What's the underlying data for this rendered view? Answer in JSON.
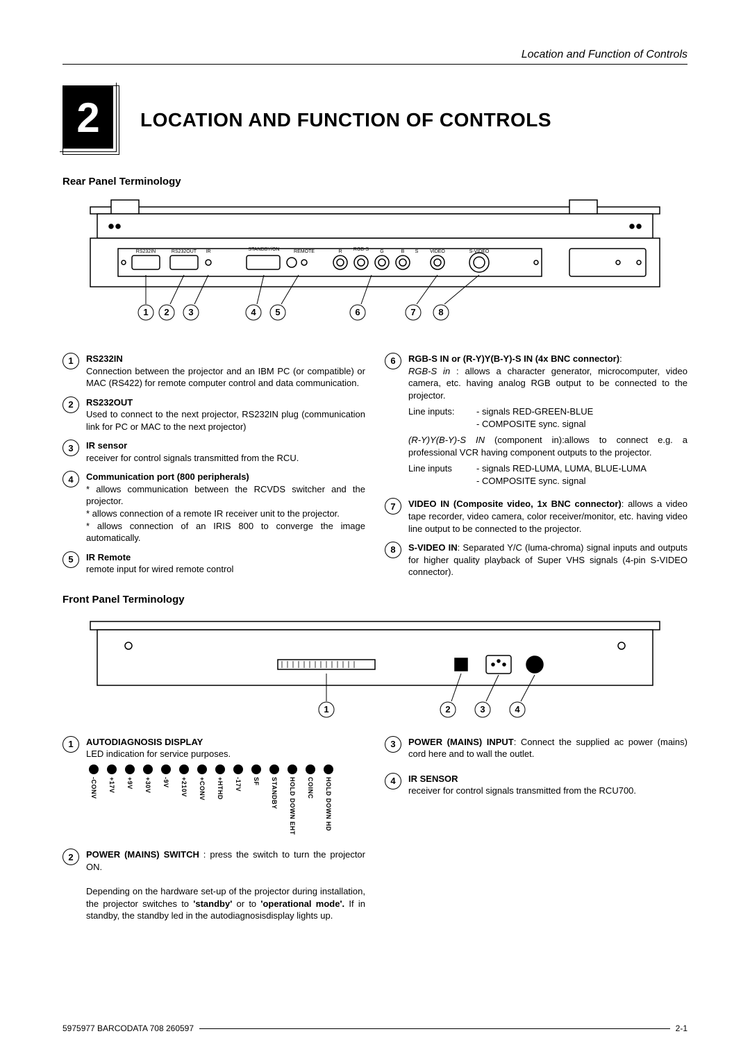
{
  "header": {
    "running_title": "Location and Function of Controls"
  },
  "chapter": {
    "number": "2",
    "title": "LOCATION AND FUNCTION OF CONTROLS"
  },
  "rear": {
    "heading": "Rear Panel Terminology",
    "diagram": {
      "type": "infographic",
      "colors": {
        "stroke": "#000000",
        "fill": "#ffffff"
      },
      "port_labels": [
        "RS232IN",
        "RS232OUT",
        "IR",
        "STANDBY/ON",
        "REMOTE",
        "R",
        "RGB-S",
        "G",
        "B",
        "S",
        "VIDEO",
        "S-VIDEO"
      ],
      "callouts": [
        "1",
        "2",
        "3",
        "4",
        "5",
        "6",
        "7",
        "8"
      ]
    },
    "items_left": [
      {
        "n": "1",
        "title": "RS232IN",
        "text": "Connection between the projector and an IBM PC (or compatible) or MAC (RS422) for remote computer control and data communication."
      },
      {
        "n": "2",
        "title": "RS232OUT",
        "text": "Used to connect to the next projector, RS232IN plug (communication link for PC or MAC to the next projector)"
      },
      {
        "n": "3",
        "title": "IR sensor",
        "text": "receiver for control signals transmitted from the RCU."
      },
      {
        "n": "4",
        "title": "Communication port (800 peripherals)",
        "text": "* allows communication between the RCVDS switcher and the projector.\n* allows connection of a remote IR receiver unit to the projector.\n* allows connection of an IRIS 800 to converge the image automatically."
      },
      {
        "n": "5",
        "title": "IR Remote",
        "text": "remote input for wired remote control"
      }
    ],
    "items_right": [
      {
        "n": "6",
        "title": "RGB-S IN or (R-Y)Y(B-Y)-S IN (4x BNC connector)",
        "rgb_in_label": "RGB-S in",
        "rgb_in_text": " : allows a character generator, microcomputer, video camera, etc. having analog RGB output to be connected to the projector.",
        "line1_label": "Line inputs:",
        "line1_a": "- signals RED-GREEN-BLUE",
        "line1_b": "- COMPOSITE sync. signal",
        "comp_in_label": "(R-Y)Y(B-Y)-S IN",
        "comp_in_text": " (component in):allows to connect e.g. a professional VCR having component outputs to the projector.",
        "line2_label": "Line inputs",
        "line2_a": "- signals RED-LUMA, LUMA, BLUE-LUMA",
        "line2_b": "- COMPOSITE sync. signal"
      },
      {
        "n": "7",
        "title": "VIDEO IN (Composite video, 1x BNC connector)",
        "text": ": allows a video tape recorder, video camera, color receiver/monitor, etc. having video line output to be connected to the projector."
      },
      {
        "n": "8",
        "title": "S-VIDEO IN",
        "text": ": Separated Y/C (luma-chroma) signal inputs and outputs for higher quality playback of Super VHS signals (4-pin S-VIDEO connector)."
      }
    ]
  },
  "front": {
    "heading": "Front Panel Terminology",
    "diagram": {
      "type": "infographic",
      "colors": {
        "stroke": "#000000",
        "fill": "#ffffff"
      },
      "callouts": [
        "1",
        "2",
        "3",
        "4"
      ]
    },
    "items_left": [
      {
        "n": "1",
        "title": "AUTODIAGNOSIS DISPLAY",
        "text": "LED indication for service purposes.",
        "leds": [
          "-CONV",
          "+17V",
          "+9V",
          "+30V",
          "-9V",
          "+210V",
          "+CONV",
          "+HTHD",
          "-17V",
          "SF",
          "STANDBY",
          "HOLD DOWN EHT",
          "COINC",
          "HOLD DOWN HD"
        ]
      },
      {
        "n": "2",
        "title": "POWER (MAINS) SWITCH",
        "text": " : press the switch to turn the projector ON.",
        "extra1": "Depending on the hardware set-up of the projector during installation, the projector switches to ",
        "extra_bold1": "'standby'",
        "extra2": " or to ",
        "extra_bold2": "'operational mode'.",
        "extra3": " If in standby, the standby led in the autodiagnosisdisplay lights up."
      }
    ],
    "items_right": [
      {
        "n": "3",
        "title": "POWER (MAINS) INPUT",
        "text": ": Connect the supplied ac power (mains) cord here and to wall the outlet."
      },
      {
        "n": "4",
        "title": "IR SENSOR",
        "text": "receiver for control signals transmitted from the RCU700."
      }
    ]
  },
  "footer": {
    "left": "5975977 BARCODATA 708 260597",
    "right": "2-1"
  }
}
